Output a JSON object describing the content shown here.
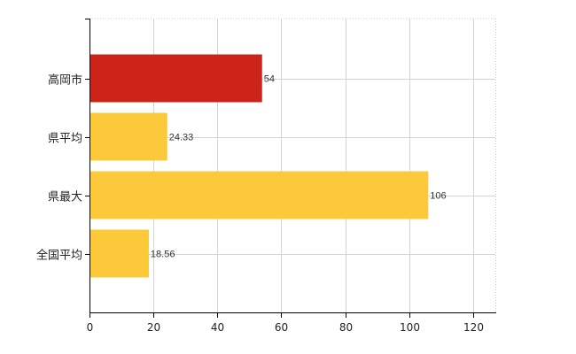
{
  "chart_data": {
    "type": "bar",
    "orientation": "horizontal",
    "categories": [
      "高岡市",
      "県平均",
      "県最大",
      "全国平均"
    ],
    "values": [
      54,
      24.33,
      106,
      18.56
    ],
    "data_labels": [
      "54",
      "24.33",
      "106",
      "18.56"
    ],
    "bar_colors": [
      "#cc2418",
      "#fcc93a",
      "#fcc93a",
      "#fcc93a"
    ],
    "xlim": [
      0,
      127
    ],
    "xticks": [
      0,
      20,
      40,
      60,
      80,
      100,
      120
    ],
    "grid": true,
    "title": "",
    "xlabel": "",
    "ylabel": ""
  }
}
